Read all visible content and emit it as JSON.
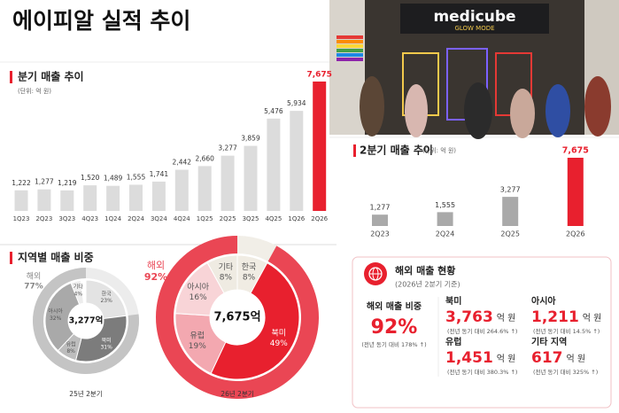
{
  "header": {
    "title": "에이피알 실적 추이"
  },
  "photo": {
    "sign": "medicube",
    "sub": "GLOW MODE"
  },
  "region_section": {
    "title": "지역별 매출 비중"
  },
  "chart_data": [
    {
      "type": "bar",
      "title": "분기 매출 추이",
      "subtitle": "(단위: 억 원)",
      "categories": [
        "1Q23",
        "2Q23",
        "3Q23",
        "4Q23",
        "1Q24",
        "2Q24",
        "3Q24",
        "4Q24",
        "1Q25",
        "2Q25",
        "3Q25",
        "4Q25",
        "1Q26",
        "2Q26"
      ],
      "values": [
        1222,
        1277,
        1219,
        1520,
        1489,
        1555,
        1741,
        2442,
        2660,
        3277,
        3859,
        5476,
        5934,
        7675
      ],
      "value_labels": [
        "1,222",
        "1,277",
        "1,219",
        "1,520",
        "1,489",
        "1,555",
        "1,741",
        "2,442",
        "2,660",
        "3,277",
        "3,859",
        "5,476",
        "5,934",
        "7,675"
      ],
      "colors": [
        "#dcdcdc",
        "#dcdcdc",
        "#dcdcdc",
        "#dcdcdc",
        "#dcdcdc",
        "#dcdcdc",
        "#dcdcdc",
        "#dcdcdc",
        "#dcdcdc",
        "#dcdcdc",
        "#dcdcdc",
        "#dcdcdc",
        "#dcdcdc",
        "#e8202e"
      ]
    },
    {
      "type": "bar",
      "title": "2분기 매출 추이",
      "subtitle": "(단위: 억 원)",
      "categories": [
        "2Q23",
        "2Q24",
        "2Q25",
        "2Q26"
      ],
      "values": [
        1277,
        1555,
        3277,
        7675
      ],
      "value_labels": [
        "1,277",
        "1,555",
        "3,277",
        "7,675"
      ],
      "colors": [
        "#a9a9a9",
        "#a9a9a9",
        "#a9a9a9",
        "#e8202e"
      ]
    },
    {
      "type": "pie",
      "title": "25년 2분기",
      "center_label": "3,277억",
      "categories": [
        "한국",
        "북미",
        "유럽",
        "아시아",
        "기타"
      ],
      "values": [
        23,
        31,
        8,
        32,
        4
      ],
      "value_labels": [
        "23%",
        "31%",
        "8%",
        "32%",
        "4%"
      ],
      "colors": [
        "#e3e3e3",
        "#7c7c7c",
        "#bdbdbd",
        "#a9a9a9",
        "#ededed"
      ],
      "ring": {
        "name": "해외",
        "value": 77,
        "value_label": "77%",
        "color": "#c4c4c4",
        "rest_color": "#ececec"
      }
    },
    {
      "type": "pie",
      "title": "26년 2분기",
      "center_label": "7,675억",
      "categories": [
        "한국",
        "북미",
        "유럽",
        "아시아",
        "기타"
      ],
      "values": [
        8,
        49,
        19,
        16,
        8
      ],
      "value_labels": [
        "8%",
        "49%",
        "19%",
        "16%",
        "8%"
      ],
      "colors": [
        "#f0ece3",
        "#e8202e",
        "#f3a8b0",
        "#f8d4d7",
        "#efebe2"
      ],
      "ring": {
        "name": "해외",
        "value": 92,
        "value_label": "92%",
        "color": "#ea4654",
        "rest_color": "#f1eee7"
      }
    }
  ],
  "overseas_panel": {
    "title": "해외 매출 현황",
    "date": "(2026년 2분기 기준)",
    "share_label": "해외 매출 비중",
    "share": "92%",
    "share_note": "(전년 동기 대비 178% ↑)",
    "regions": [
      {
        "name": "북미",
        "value": "3,763",
        "unit": "억 원",
        "note": "(전년 동기 대비 264.6% ↑)"
      },
      {
        "name": "아시아",
        "value": "1,211",
        "unit": "억 원",
        "note": "(전년 동기 대비 14.5% ↑)"
      },
      {
        "name": "유럽",
        "value": "1,451",
        "unit": "억 원",
        "note": "(전년 동기 대비 380.3% ↑)"
      },
      {
        "name": "기타 지역",
        "value": "617",
        "unit": "억 원",
        "note": "(전년 동기 대비 325% ↑)"
      }
    ]
  }
}
